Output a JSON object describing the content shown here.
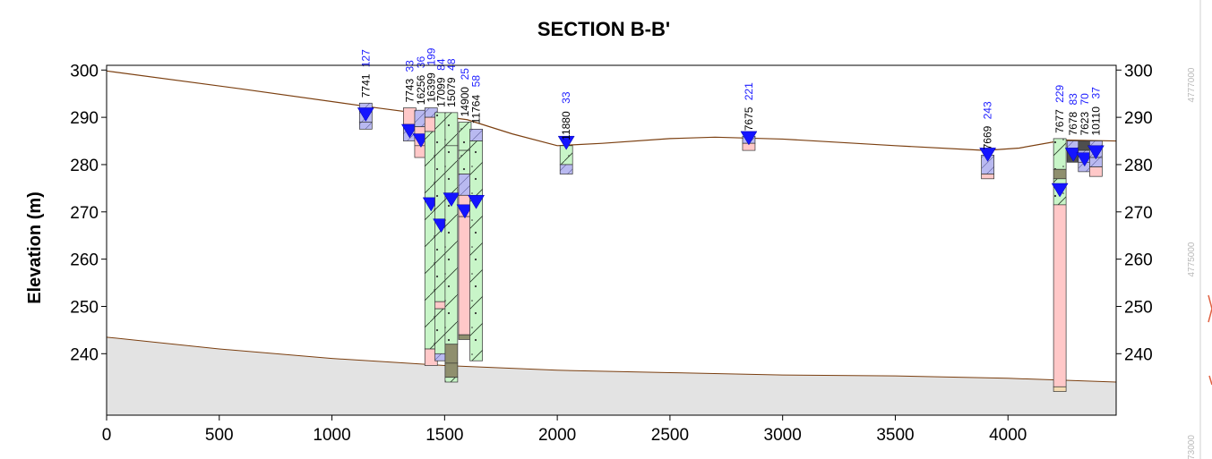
{
  "title": "SECTION B-B'",
  "ylabel": "Elevation (m)",
  "x_ticks": [
    "0",
    "500",
    "1000",
    "1500",
    "2000",
    "2500",
    "3000",
    "3500",
    "4000"
  ],
  "y_ticks": [
    "240",
    "250",
    "260",
    "270",
    "280",
    "290",
    "300"
  ],
  "y_ticks_right": [
    "240",
    "250",
    "260",
    "270",
    "280",
    "290",
    "300"
  ],
  "northing_labels": [
    "4777000",
    "4775000",
    "73000"
  ],
  "colors": {
    "surface_line": "#7b3f10",
    "bedrock_fill": "#e3e3e3",
    "water_level": "#1414ff",
    "clay": "#b9b9f0",
    "sand": "#ffc8c8",
    "till": "#c8f5c8",
    "rock": "#8f8f6e",
    "dark": "#4e4e4e",
    "tan": "#f5dcb4"
  },
  "chart_data": {
    "type": "cross-section",
    "xlim": [
      0,
      4480
    ],
    "ylim": [
      227,
      301
    ],
    "ground_surface": [
      [
        0,
        299.8
      ],
      [
        600,
        296
      ],
      [
        1200,
        292
      ],
      [
        1600,
        289.5
      ],
      [
        1800,
        286.5
      ],
      [
        2000,
        284
      ],
      [
        2200,
        284.5
      ],
      [
        2500,
        285.5
      ],
      [
        2700,
        285.8
      ],
      [
        3000,
        285.4
      ],
      [
        3500,
        284
      ],
      [
        3900,
        283
      ],
      [
        4050,
        283.5
      ],
      [
        4250,
        285.2
      ],
      [
        4480,
        285
      ]
    ],
    "bedrock_surface": [
      [
        0,
        243.5
      ],
      [
        500,
        241
      ],
      [
        1000,
        239
      ],
      [
        1500,
        237.5
      ],
      [
        2000,
        236.5
      ],
      [
        2500,
        236
      ],
      [
        3000,
        235.5
      ],
      [
        3500,
        235.3
      ],
      [
        4000,
        234.8
      ],
      [
        4480,
        234
      ]
    ],
    "boreholes": [
      {
        "id": "7741",
        "depth": "127",
        "x": 1150,
        "intervals": [
          [
            293,
            289,
            "clay"
          ],
          [
            289,
            287.5,
            "clay"
          ]
        ],
        "water": [
          290.5
        ]
      },
      {
        "id": "7743",
        "depth": "33",
        "x": 1345,
        "intervals": [
          [
            292,
            288.5,
            "sand"
          ],
          [
            288.5,
            285,
            "clay"
          ]
        ],
        "water": [
          287
        ]
      },
      {
        "id": "16256",
        "depth": "36",
        "x": 1395,
        "intervals": [
          [
            291.5,
            288,
            "clay"
          ],
          [
            288,
            284,
            "sand"
          ],
          [
            284,
            281.5,
            "sand"
          ]
        ],
        "water": [
          285
        ]
      },
      {
        "id": "16399",
        "depth": "199",
        "x": 1440,
        "intervals": [
          [
            292,
            290,
            "clay"
          ],
          [
            290,
            287,
            "sand"
          ],
          [
            287,
            241,
            "till"
          ],
          [
            241,
            237.5,
            "sand"
          ]
        ],
        "water": [
          271.5
        ]
      },
      {
        "id": "17099",
        "depth": "84",
        "x": 1485,
        "intervals": [
          [
            291,
            251,
            "till"
          ],
          [
            251,
            249.5,
            "sand"
          ],
          [
            249.5,
            240,
            "till"
          ],
          [
            240,
            238.5,
            "clay"
          ]
        ],
        "water": [
          267
        ]
      },
      {
        "id": "15079",
        "depth": "48",
        "x": 1530,
        "intervals": [
          [
            291,
            284,
            "till"
          ],
          [
            284,
            242,
            "till"
          ],
          [
            242,
            238,
            "rock"
          ],
          [
            238,
            235,
            "rock"
          ],
          [
            235,
            234,
            "till"
          ]
        ],
        "water": [
          272.5
        ]
      },
      {
        "id": "14900",
        "depth": "25",
        "x": 1590,
        "intervals": [
          [
            289,
            283,
            "till"
          ],
          [
            283,
            278,
            "till"
          ],
          [
            278,
            273.5,
            "clay"
          ],
          [
            273.5,
            269,
            "sand"
          ],
          [
            269,
            244,
            "sand"
          ],
          [
            244,
            243,
            "rock"
          ]
        ],
        "water": [
          270
        ]
      },
      {
        "id": "11764",
        "depth": "58",
        "x": 1640,
        "intervals": [
          [
            287.5,
            285,
            "clay"
          ],
          [
            285,
            238.5,
            "till"
          ]
        ],
        "water": [
          272
        ]
      },
      {
        "id": "11880",
        "depth": "33",
        "x": 2040,
        "intervals": [
          [
            284,
            280,
            "till"
          ],
          [
            280,
            278,
            "clay"
          ]
        ],
        "water": [
          284.5
        ]
      },
      {
        "id": "7675",
        "depth": "221",
        "x": 2850,
        "intervals": [
          [
            286,
            284.5,
            "clay"
          ],
          [
            284.5,
            283,
            "sand"
          ]
        ],
        "water": [
          285.5
        ]
      },
      {
        "id": "7669",
        "depth": "243",
        "x": 3910,
        "intervals": [
          [
            282,
            278,
            "clay"
          ],
          [
            278,
            277,
            "sand"
          ]
        ],
        "water": [
          282
        ]
      },
      {
        "id": "7677",
        "depth": "229",
        "x": 4230,
        "intervals": [
          [
            285.5,
            279,
            "till"
          ],
          [
            279,
            277,
            "rock"
          ],
          [
            277,
            271.5,
            "till"
          ],
          [
            271.5,
            233,
            "sand"
          ],
          [
            233,
            232,
            "tan"
          ]
        ],
        "water": [
          274.5
        ]
      },
      {
        "id": "7678",
        "depth": "83",
        "x": 4290,
        "intervals": [
          [
            285,
            283,
            "clay"
          ],
          [
            283,
            280.5,
            "dark"
          ]
        ],
        "water": [
          282
        ]
      },
      {
        "id": "7623",
        "depth": "70",
        "x": 4340,
        "intervals": [
          [
            285,
            283,
            "dark"
          ],
          [
            283,
            280.5,
            "clay"
          ],
          [
            280.5,
            278.5,
            "clay"
          ]
        ],
        "water": [
          281
        ]
      },
      {
        "id": "10110",
        "depth": "37",
        "x": 4390,
        "intervals": [
          [
            285,
            281.5,
            "clay"
          ],
          [
            281.5,
            279.5,
            "clay"
          ],
          [
            279.5,
            277.5,
            "sand"
          ]
        ],
        "water": [
          282.5
        ]
      }
    ]
  }
}
